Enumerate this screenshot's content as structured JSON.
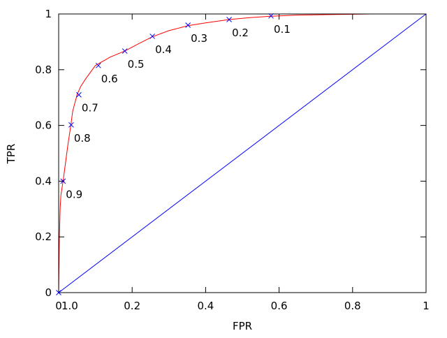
{
  "chart_data": {
    "type": "line",
    "title": "",
    "xlabel": "FPR",
    "ylabel": "TPR",
    "xlim": [
      0,
      1
    ],
    "ylim": [
      0,
      1
    ],
    "grid": false,
    "legend": "none",
    "x_ticks": [
      {
        "value": 0,
        "label": "0"
      },
      {
        "value": 0.2,
        "label": "0.2"
      },
      {
        "value": 0.4,
        "label": "0.4"
      },
      {
        "value": 0.6,
        "label": "0.6"
      },
      {
        "value": 0.8,
        "label": "0.8"
      },
      {
        "value": 1,
        "label": "1"
      }
    ],
    "y_ticks": [
      {
        "value": 0,
        "label": "0"
      },
      {
        "value": 0.2,
        "label": "0.2"
      },
      {
        "value": 0.4,
        "label": "0.4"
      },
      {
        "value": 0.6,
        "label": "0.6"
      },
      {
        "value": 0.8,
        "label": "0.8"
      },
      {
        "value": 1,
        "label": "1"
      }
    ],
    "series": [
      {
        "color": "#ff0000",
        "style": "line",
        "points": [
          [
            0,
            0
          ],
          [
            0.001,
            0.1
          ],
          [
            0.002,
            0.2
          ],
          [
            0.004,
            0.3
          ],
          [
            0.006,
            0.35
          ],
          [
            0.012,
            0.4
          ],
          [
            0.018,
            0.46
          ],
          [
            0.025,
            0.53
          ],
          [
            0.033,
            0.6
          ],
          [
            0.038,
            0.65
          ],
          [
            0.05,
            0.71
          ],
          [
            0.06,
            0.74
          ],
          [
            0.075,
            0.77
          ],
          [
            0.1,
            0.815
          ],
          [
            0.14,
            0.845
          ],
          [
            0.18,
            0.867
          ],
          [
            0.22,
            0.895
          ],
          [
            0.255,
            0.918
          ],
          [
            0.3,
            0.94
          ],
          [
            0.352,
            0.958
          ],
          [
            0.4,
            0.968
          ],
          [
            0.464,
            0.98
          ],
          [
            0.52,
            0.987
          ],
          [
            0.578,
            0.992
          ],
          [
            0.65,
            0.996
          ],
          [
            0.75,
            0.998
          ],
          [
            0.85,
            1.0
          ],
          [
            1.0,
            1.0
          ]
        ]
      },
      {
        "color": "#0000ff",
        "style": "line",
        "points": [
          [
            0,
            0
          ],
          [
            1,
            1
          ]
        ]
      }
    ],
    "threshold_points": [
      {
        "x": 0.0,
        "y": 0.0,
        "label": "1.0"
      },
      {
        "x": 0.012,
        "y": 0.4,
        "label": "0.9"
      },
      {
        "x": 0.034,
        "y": 0.602,
        "label": "0.8"
      },
      {
        "x": 0.055,
        "y": 0.71,
        "label": "0.7"
      },
      {
        "x": 0.108,
        "y": 0.815,
        "label": "0.6"
      },
      {
        "x": 0.18,
        "y": 0.867,
        "label": "0.5"
      },
      {
        "x": 0.255,
        "y": 0.92,
        "label": "0.4"
      },
      {
        "x": 0.352,
        "y": 0.96,
        "label": "0.3"
      },
      {
        "x": 0.464,
        "y": 0.98,
        "label": "0.2"
      },
      {
        "x": 0.578,
        "y": 0.993,
        "label": "0.1"
      }
    ],
    "marker_color": "#0000ff",
    "marker_symbol": "x"
  }
}
